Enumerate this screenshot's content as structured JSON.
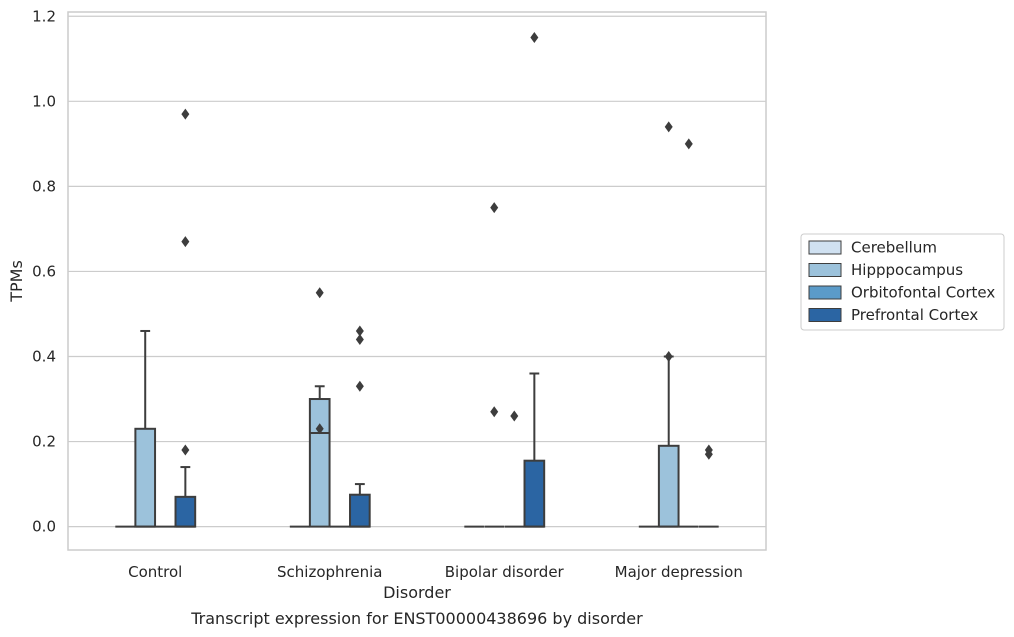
{
  "chart_data": {
    "type": "box",
    "caption": "Transcript expression for ENST00000438696 by disorder",
    "xlabel": "Disorder",
    "ylabel": "TPMs",
    "ylim": [
      -0.055,
      1.21
    ],
    "yticks": [
      "0.0",
      "0.2",
      "0.4",
      "0.6",
      "0.8",
      "1.0",
      "1.2"
    ],
    "grid": true,
    "legend_position": "right",
    "categories": [
      "Control",
      "Schizophrenia",
      "Bipolar disorder",
      "Major depression"
    ],
    "series": [
      {
        "name": "Cerebellum",
        "color": "#d0e1f1",
        "boxes": [
          {
            "q1": 0,
            "median": 0,
            "q3": 0,
            "whisker_low": 0,
            "whisker_high": 0,
            "outliers": []
          },
          {
            "q1": 0,
            "median": 0,
            "q3": 0,
            "whisker_low": 0,
            "whisker_high": 0,
            "outliers": []
          },
          {
            "q1": 0,
            "median": 0,
            "q3": 0,
            "whisker_low": 0,
            "whisker_high": 0,
            "outliers": []
          },
          {
            "q1": 0,
            "median": 0,
            "q3": 0,
            "whisker_low": 0,
            "whisker_high": 0,
            "outliers": []
          }
        ]
      },
      {
        "name": "Hipppocampus",
        "color": "#9cc2db",
        "boxes": [
          {
            "q1": 0,
            "median": 0,
            "q3": 0.23,
            "whisker_low": 0,
            "whisker_high": 0.46,
            "outliers": []
          },
          {
            "q1": 0,
            "median": 0.22,
            "q3": 0.3,
            "whisker_low": 0,
            "whisker_high": 0.33,
            "outliers": [
              0.55,
              0.23
            ]
          },
          {
            "q1": 0,
            "median": 0,
            "q3": 0,
            "whisker_low": 0,
            "whisker_high": 0,
            "outliers": [
              0.75,
              0.27
            ]
          },
          {
            "q1": 0,
            "median": 0,
            "q3": 0.19,
            "whisker_low": 0,
            "whisker_high": 0.4,
            "outliers": [
              0.94,
              0.4
            ]
          }
        ]
      },
      {
        "name": "Orbitofontal Cortex",
        "color": "#5b9bc9",
        "boxes": [
          {
            "q1": 0,
            "median": 0,
            "q3": 0,
            "whisker_low": 0,
            "whisker_high": 0,
            "outliers": []
          },
          {
            "q1": 0,
            "median": 0,
            "q3": 0,
            "whisker_low": 0,
            "whisker_high": 0,
            "outliers": []
          },
          {
            "q1": 0,
            "median": 0,
            "q3": 0,
            "whisker_low": 0,
            "whisker_high": 0,
            "outliers": [
              0.26
            ]
          },
          {
            "q1": 0,
            "median": 0,
            "q3": 0,
            "whisker_low": 0,
            "whisker_high": 0,
            "outliers": [
              0.9
            ]
          }
        ]
      },
      {
        "name": "Prefrontal Cortex",
        "color": "#2b65a3",
        "boxes": [
          {
            "q1": 0,
            "median": 0,
            "q3": 0.07,
            "whisker_low": 0,
            "whisker_high": 0.14,
            "outliers": [
              0.97,
              0.67,
              0.18
            ]
          },
          {
            "q1": 0,
            "median": 0,
            "q3": 0.075,
            "whisker_low": 0,
            "whisker_high": 0.1,
            "outliers": [
              0.46,
              0.44,
              0.33
            ]
          },
          {
            "q1": 0,
            "median": 0,
            "q3": 0.155,
            "whisker_low": 0,
            "whisker_high": 0.36,
            "outliers": [
              1.15
            ]
          },
          {
            "q1": 0,
            "median": 0,
            "q3": 0,
            "whisker_low": 0,
            "whisker_high": 0,
            "outliers": [
              0.18,
              0.17
            ]
          }
        ]
      }
    ]
  }
}
